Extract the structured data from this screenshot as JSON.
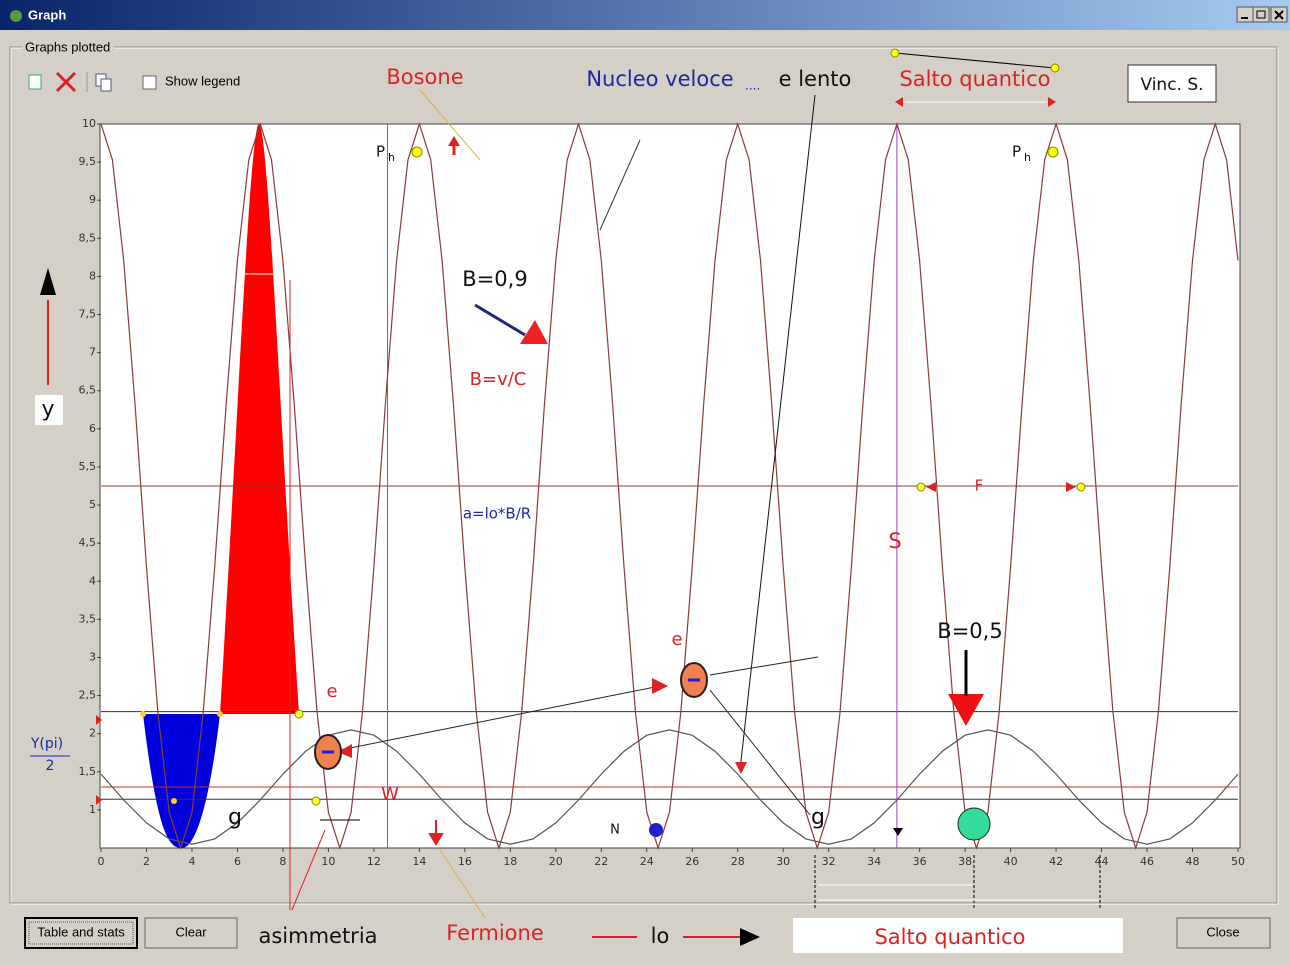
{
  "window": {
    "title": "Graph"
  },
  "group_label": "Graphs plotted",
  "toolbar": {
    "show_legend": "Show legend"
  },
  "buttons": [
    "Table and stats",
    "Clear",
    "Close"
  ],
  "chart_data": {
    "type": "line",
    "xlim": [
      0,
      50
    ],
    "xticks": [
      0,
      2,
      4,
      6,
      8,
      10,
      12,
      14,
      16,
      18,
      20,
      22,
      24,
      26,
      28,
      30,
      32,
      34,
      36,
      38,
      40,
      42,
      44,
      46,
      48,
      50
    ],
    "ylim": [
      0.5,
      10
    ],
    "yticks": [
      1,
      {
        "value": 1.5,
        "label": "1,5"
      },
      2,
      {
        "value": 2.5,
        "label": "2,5"
      },
      3,
      {
        "value": 3.5,
        "label": "3,5"
      },
      4,
      {
        "value": 4.5,
        "label": "4,5"
      },
      5,
      {
        "value": 5.5,
        "label": "5,5"
      },
      6,
      {
        "value": 6.5,
        "label": "6,5"
      },
      7,
      {
        "value": 7.5,
        "label": "7,5"
      },
      8,
      {
        "value": 8.5,
        "label": "8,5"
      },
      9,
      {
        "value": 9.5,
        "label": "9,5"
      },
      10
    ],
    "series": [
      {
        "color": "#8b3a3a",
        "x": [
          0,
          0.5,
          1,
          1.5,
          2,
          2.5,
          3,
          3.5,
          4,
          4.5,
          5,
          5.5,
          6,
          6.5,
          7,
          7.5,
          8,
          8.5,
          9,
          9.5,
          10,
          10.5,
          11,
          11.5,
          12,
          12.5,
          13,
          13.5,
          14,
          14.5,
          15,
          15.5,
          16,
          16.5,
          17,
          17.5,
          18,
          18.5,
          19,
          19.5,
          20,
          20.5,
          21,
          21.5,
          22,
          22.5,
          23,
          23.5,
          24,
          24.5,
          25,
          25.5,
          26,
          26.5,
          27,
          27.5,
          28,
          28.5,
          29,
          29.5,
          30,
          30.5,
          31,
          31.5,
          32,
          32.5,
          33,
          33.5,
          34,
          34.5,
          35,
          35.5,
          36,
          36.5,
          37,
          37.5,
          38,
          38.5,
          39,
          39.5,
          40,
          40.5,
          41,
          41.5,
          42,
          42.5,
          43,
          43.5,
          44,
          44.5,
          45,
          45.5,
          46,
          46.5,
          47,
          47.5,
          48,
          48.5,
          49,
          49.5,
          50
        ],
        "values": [
          10,
          9.53,
          8.21,
          6.31,
          4.19,
          2.29,
          0.97,
          0.5,
          0.97,
          2.29,
          4.19,
          6.31,
          8.21,
          9.53,
          10,
          9.53,
          8.21,
          6.31,
          4.19,
          2.29,
          0.97,
          0.5,
          0.97,
          2.29,
          4.19,
          6.31,
          8.21,
          9.53,
          10,
          9.53,
          8.21,
          6.31,
          4.19,
          2.29,
          0.97,
          0.5,
          0.97,
          2.29,
          4.19,
          6.31,
          8.21,
          9.53,
          10,
          9.53,
          8.21,
          6.31,
          4.19,
          2.29,
          0.97,
          0.5,
          0.97,
          2.29,
          4.19,
          6.31,
          8.21,
          9.53,
          10,
          9.53,
          8.21,
          6.31,
          4.19,
          2.29,
          0.97,
          0.5,
          0.97,
          2.29,
          4.19,
          6.31,
          8.21,
          9.53,
          10,
          9.53,
          8.21,
          6.31,
          4.19,
          2.29,
          0.97,
          0.5,
          0.97,
          2.29,
          4.19,
          6.31,
          8.21,
          9.53,
          10,
          9.53,
          8.21,
          6.31,
          4.19,
          2.29,
          0.97,
          0.5,
          0.97,
          2.29,
          4.19,
          6.31,
          8.21,
          9.53,
          10,
          9.53,
          8.21
        ]
      },
      {
        "color": "#555555",
        "x": [
          0,
          1,
          2,
          3,
          4,
          5,
          6,
          7,
          8,
          9,
          10,
          11,
          12,
          13,
          14,
          15,
          16,
          17,
          18,
          19,
          20,
          21,
          22,
          23,
          24,
          25,
          26,
          27,
          28,
          29,
          30,
          31,
          32,
          33,
          34,
          35,
          36,
          37,
          38,
          39,
          40,
          41,
          42,
          43,
          44,
          45,
          46,
          47,
          48,
          49,
          50
        ],
        "values": [
          1.47,
          1.13,
          0.83,
          0.62,
          0.55,
          0.62,
          0.83,
          1.13,
          1.47,
          1.77,
          1.98,
          2.05,
          1.98,
          1.77,
          1.47,
          1.13,
          0.83,
          0.62,
          0.55,
          0.62,
          0.83,
          1.13,
          1.47,
          1.77,
          1.98,
          2.05,
          1.98,
          1.77,
          1.47,
          1.13,
          0.83,
          0.62,
          0.55,
          0.62,
          0.83,
          1.13,
          1.47,
          1.77,
          1.98,
          2.05,
          1.98,
          1.77,
          1.47,
          1.13,
          0.83,
          0.62,
          0.55,
          0.62,
          0.83,
          1.13,
          1.47
        ]
      }
    ],
    "hlines": [
      {
        "value": 5.25,
        "color": "#8b3a3a"
      },
      {
        "value": 2.29,
        "color": "#333333"
      },
      {
        "value": 1.3,
        "color": "#c03030"
      },
      {
        "value": 1.14,
        "color": "#333333"
      }
    ],
    "vlines": [
      {
        "value": 12.6,
        "color": "#a040c0"
      },
      {
        "value": 35,
        "color": "#a040c0"
      }
    ],
    "annotations": [
      "Bosone",
      "Nucleo veloce",
      "....",
      "e lento",
      "Salto quantico",
      "Vinc. S.",
      "P",
      "h",
      "P",
      "h",
      "B=0,9",
      "B=v/C",
      "y",
      "a=lo*B/R",
      "S",
      "F",
      "B=0,5",
      "e",
      "e",
      "g",
      "g",
      "W",
      "N",
      "Y(pi)",
      "2",
      "asimmetria",
      "Fermione",
      "lo",
      "Salto quantico"
    ]
  }
}
